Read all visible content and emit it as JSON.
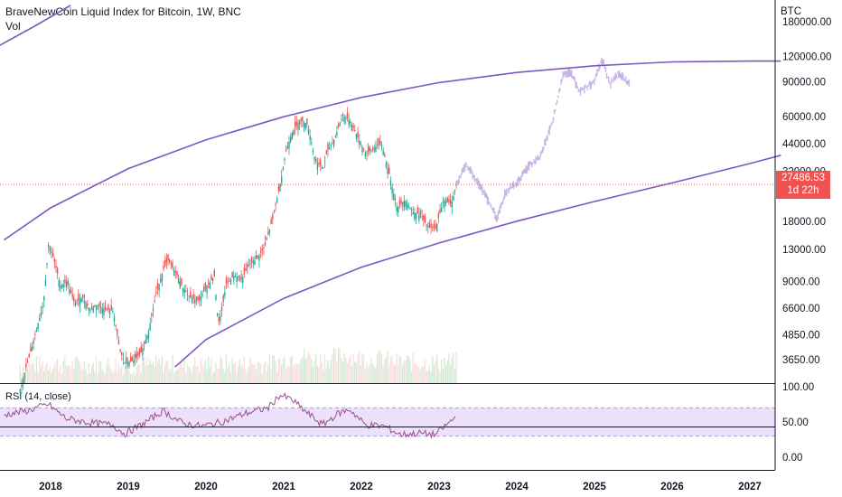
{
  "header": {
    "title": "BraveNewCoin Liquid Index for Bitcoin, 1W, BNC",
    "volume_label": "Vol"
  },
  "rsi_panel": {
    "label": "RSI (14, close)"
  },
  "last_price": {
    "value": "27486.53",
    "countdown": "1d 22h"
  },
  "colors": {
    "up": "#26a69a",
    "down": "#ef5350",
    "channel": "#7e57c2",
    "projection": "#b39ddb",
    "rsi_line": "#9c4f8f",
    "rsi_band": "#ede0fb",
    "price_line": "#ef5350"
  },
  "chart_data": [
    {
      "type": "line",
      "title": "BraveNewCoin Liquid Index for Bitcoin, 1W, BNC",
      "y_unit": "BTC",
      "y_scale": "log",
      "y_ticks": [
        3650,
        4850,
        6600,
        9000,
        13000,
        18000,
        32000,
        44000,
        60000,
        90000,
        120000,
        180000
      ],
      "y_tick_labels": [
        "3650.00",
        "4850.00",
        "6600.00",
        "9000.00",
        "13000.00",
        "18000.00",
        "32000.00",
        "44000.00",
        "60000.00",
        "90000.00",
        "120000.00",
        "180000.00"
      ],
      "x_ticks": [
        2018,
        2019,
        2020,
        2021,
        2022,
        2023,
        2024,
        2025,
        2026,
        2027
      ],
      "x_tick_labels": [
        "2018",
        "2019",
        "2020",
        "2021",
        "2022",
        "2023",
        "2024",
        "2025",
        "2026",
        "2027"
      ],
      "last_price": 27486.53,
      "series": [
        {
          "kind": "price",
          "x": [
            2017.6,
            2017.75,
            2017.9,
            2017.97,
            2018.05,
            2018.12,
            2018.2,
            2018.3,
            2018.4,
            2018.5,
            2018.6,
            2018.7,
            2018.8,
            2018.88,
            2018.95,
            2019.05,
            2019.15,
            2019.25,
            2019.35,
            2019.45,
            2019.5,
            2019.6,
            2019.7,
            2019.8,
            2019.9,
            2020.0,
            2020.1,
            2020.15,
            2020.2,
            2020.25,
            2020.35,
            2020.45,
            2020.55,
            2020.65,
            2020.75,
            2020.85,
            2020.95,
            2021.02,
            2021.1,
            2021.2,
            2021.3,
            2021.4,
            2021.5,
            2021.55,
            2021.65,
            2021.75,
            2021.85,
            2021.95,
            2022.05,
            2022.15,
            2022.25,
            2022.35,
            2022.45,
            2022.55,
            2022.65,
            2022.75,
            2022.85,
            2022.95,
            2023.05,
            2023.15,
            2023.22
          ],
          "y": [
            2600,
            4200,
            7000,
            14000,
            11000,
            8500,
            9000,
            7000,
            7500,
            6500,
            6800,
            6500,
            6400,
            4100,
            3500,
            3600,
            3900,
            5000,
            7800,
            10500,
            11500,
            10000,
            8300,
            7400,
            7200,
            8500,
            9500,
            5500,
            6500,
            8700,
            9600,
            9200,
            11000,
            11700,
            13500,
            18500,
            28000,
            40000,
            50000,
            58000,
            55000,
            36000,
            33000,
            40000,
            47000,
            61000,
            57000,
            47000,
            39000,
            42000,
            44000,
            31000,
            21000,
            23000,
            20000,
            19500,
            16800,
            16600,
            23000,
            22000,
            27486.53
          ]
        },
        {
          "kind": "projection",
          "x": [
            2023.22,
            2023.35,
            2023.5,
            2023.6,
            2023.75,
            2023.85,
            2024.0,
            2024.15,
            2024.3,
            2024.45,
            2024.6,
            2024.7,
            2024.8,
            2024.9,
            2025.0,
            2025.1,
            2025.2,
            2025.3,
            2025.45
          ],
          "y": [
            27486.53,
            35000,
            28000,
            24000,
            18500,
            25000,
            28000,
            34000,
            38000,
            55000,
            98000,
            100000,
            80000,
            85000,
            90000,
            118000,
            87000,
            100000,
            88000
          ]
        },
        {
          "kind": "channel-upper",
          "x": [
            2017.4,
            2018.0,
            2019.0,
            2020.0,
            2021.0,
            2022.0,
            2023.0,
            2024.0,
            2025.0,
            2026.0,
            2027.0,
            2027.4
          ],
          "y": [
            14500,
            21000,
            33000,
            46000,
            60000,
            75000,
            89000,
            100000,
            108000,
            113000,
            114000,
            114000
          ]
        },
        {
          "kind": "channel-lower",
          "x": [
            2019.6,
            2020.0,
            2021.0,
            2022.0,
            2023.0,
            2024.0,
            2025.0,
            2026.0,
            2027.0,
            2027.4
          ],
          "y": [
            3350,
            4600,
            7400,
            10600,
            14000,
            18000,
            22600,
            28000,
            35000,
            38500
          ]
        }
      ]
    },
    {
      "type": "line",
      "title": "RSI (14, close)",
      "y_ticks": [
        0,
        50,
        100
      ],
      "y_tick_labels": [
        "0.00",
        "50.00",
        "100.00"
      ],
      "band": [
        30,
        70
      ],
      "x": [
        2017.4,
        2017.7,
        2017.97,
        2018.2,
        2018.5,
        2018.8,
        2018.95,
        2019.2,
        2019.45,
        2019.7,
        2019.95,
        2020.2,
        2020.5,
        2020.8,
        2020.95,
        2021.1,
        2021.3,
        2021.5,
        2021.7,
        2021.85,
        2022.05,
        2022.3,
        2022.5,
        2022.75,
        2022.95,
        2023.1,
        2023.22
      ],
      "y": [
        60,
        66,
        75,
        55,
        49,
        46,
        33,
        48,
        66,
        48,
        44,
        50,
        62,
        70,
        88,
        82,
        63,
        46,
        62,
        68,
        46,
        44,
        32,
        34,
        32,
        46,
        58
      ]
    }
  ]
}
